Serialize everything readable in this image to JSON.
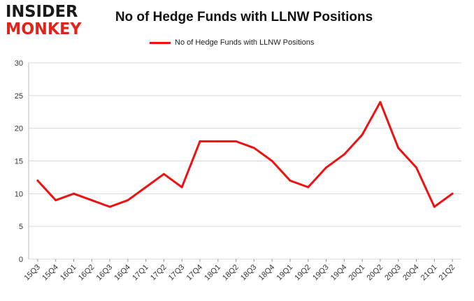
{
  "logo": {
    "line1": "INSIDER",
    "line2": "MONKEY"
  },
  "colors": {
    "series": "#ee1111",
    "grid": "#d9d9d9",
    "logo_dark": "#1a1a1a",
    "logo_red": "#e2231a"
  },
  "chart_data": {
    "type": "line",
    "title": "No of Hedge Funds with LLNW Positions",
    "xlabel": "",
    "ylabel": "",
    "ylim": [
      0,
      30
    ],
    "yticks": [
      0,
      5,
      10,
      15,
      20,
      25,
      30
    ],
    "grid": true,
    "legend_position": "top-center",
    "categories": [
      "15Q3",
      "15Q4",
      "16Q1",
      "16Q2",
      "16Q3",
      "16Q4",
      "17Q1",
      "17Q2",
      "17Q3",
      "17Q4",
      "18Q1",
      "18Q2",
      "18Q3",
      "18Q4",
      "19Q1",
      "19Q2",
      "19Q3",
      "19Q4",
      "20Q1",
      "20Q2",
      "20Q3",
      "20Q4",
      "21Q1",
      "21Q2"
    ],
    "series": [
      {
        "name": "No of Hedge Funds with LLNW Positions",
        "color": "#ee1111",
        "values": [
          12,
          9,
          10,
          9,
          8,
          9,
          11,
          13,
          11,
          18,
          18,
          18,
          17,
          15,
          12,
          11,
          14,
          16,
          19,
          24,
          17,
          14,
          8,
          10
        ]
      }
    ]
  }
}
